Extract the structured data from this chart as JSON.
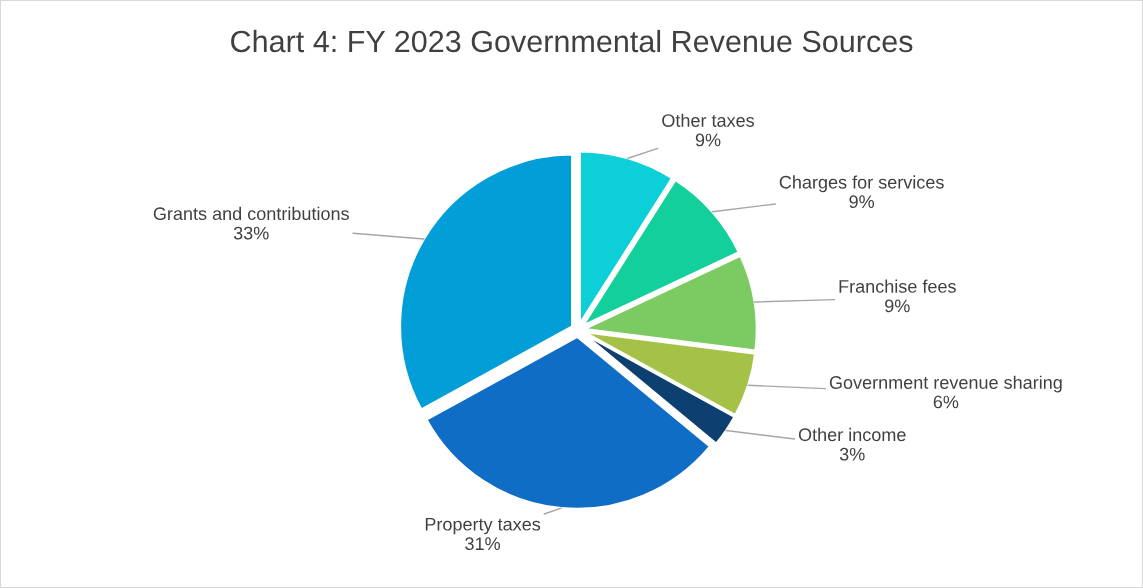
{
  "chart_data": {
    "type": "pie",
    "title": "Chart 4: FY 2023 Governmental Revenue Sources",
    "categories": [
      "Other taxes",
      "Charges for services",
      "Franchise fees",
      "Government revenue sharing",
      "Other income",
      "Property taxes",
      "Grants and contributions"
    ],
    "values": [
      9,
      9,
      9,
      6,
      3,
      31,
      33
    ],
    "colors": [
      "#0ccfd8",
      "#12cf9b",
      "#7ccb62",
      "#a6c148",
      "#0d3f70",
      "#0f6dc6",
      "#019ed8"
    ],
    "value_labels": [
      "9%",
      "9%",
      "9%",
      "6%",
      "3%",
      "31%",
      "33%"
    ],
    "legend": false
  }
}
